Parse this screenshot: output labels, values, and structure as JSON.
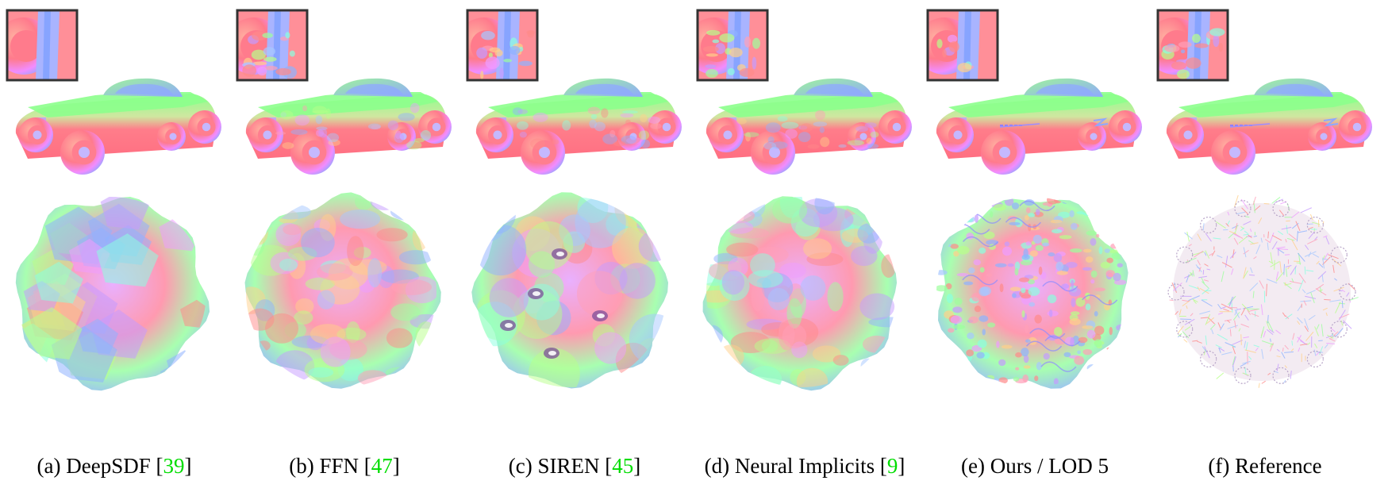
{
  "figure": {
    "panels": [
      {
        "caption_main": "(a) DeepSDF [",
        "cite": "39",
        "caption_end": "]",
        "style": "smooth-blocky"
      },
      {
        "caption_main": "(b) FFN [",
        "cite": "47",
        "caption_end": "]",
        "style": "bumpy"
      },
      {
        "caption_main": "(c) SIREN [",
        "cite": "45",
        "caption_end": "]",
        "style": "blobby-holes"
      },
      {
        "caption_main": "(d) Neural Implicits [",
        "cite": "9",
        "caption_end": "]",
        "style": "bumpy"
      },
      {
        "caption_main": "(e) Ours / LOD 5",
        "cite": "",
        "caption_end": "",
        "style": "detailed"
      },
      {
        "caption_main": "(f) Reference",
        "cite": "",
        "caption_end": "",
        "style": "fine-wire"
      }
    ],
    "colors": {
      "citation": "#00dd00",
      "normal_red": "#ff7d8a",
      "normal_green": "#8cff8c",
      "normal_blue": "#8fa8ff",
      "normal_magenta": "#f28cff",
      "inset_border": "#333333"
    },
    "icons": {
      "car": "hot-rod-car-normal-map",
      "sphere": "fractal-sphere-normal-map",
      "inset": "zoom-inset"
    }
  }
}
